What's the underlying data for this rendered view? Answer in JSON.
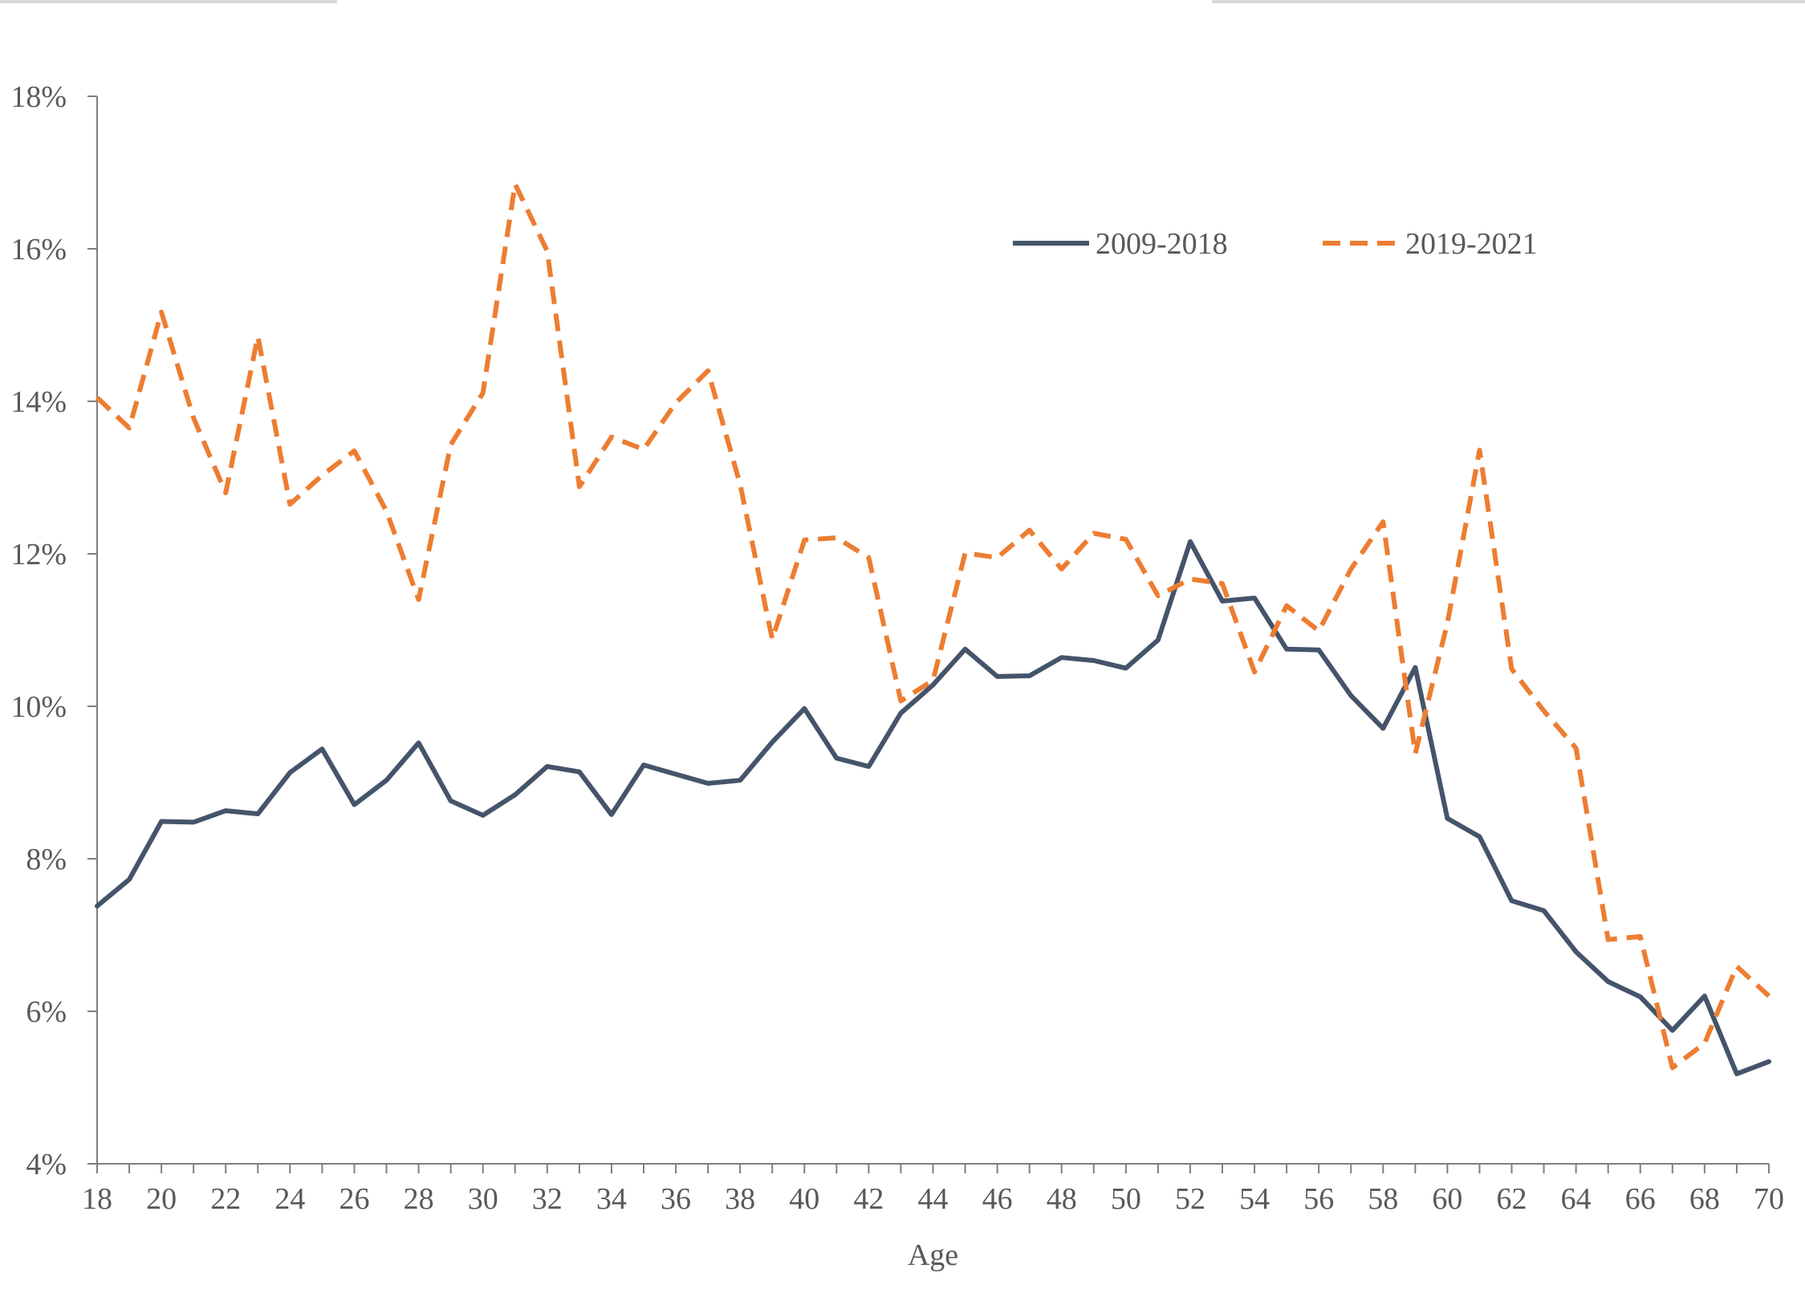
{
  "chart_data": {
    "type": "line",
    "xlabel": "Age",
    "ylabel": "",
    "xlim": [
      18,
      70
    ],
    "ylim": [
      4,
      18
    ],
    "y_unit": "%",
    "x_ticks": [
      18,
      20,
      22,
      24,
      26,
      28,
      30,
      32,
      34,
      36,
      38,
      40,
      42,
      44,
      46,
      48,
      50,
      52,
      54,
      56,
      58,
      60,
      62,
      64,
      66,
      68,
      70
    ],
    "y_ticks": [
      4,
      6,
      8,
      10,
      12,
      14,
      16,
      18
    ],
    "y_tick_labels": [
      "4%",
      "6%",
      "8%",
      "10%",
      "12%",
      "14%",
      "16%",
      "18%"
    ],
    "grid": false,
    "legend_position": "top-right",
    "x": [
      18,
      19,
      20,
      21,
      22,
      23,
      24,
      25,
      26,
      27,
      28,
      29,
      30,
      31,
      32,
      33,
      34,
      35,
      36,
      37,
      38,
      39,
      40,
      41,
      42,
      43,
      44,
      45,
      46,
      47,
      48,
      49,
      50,
      51,
      52,
      53,
      54,
      55,
      56,
      57,
      58,
      59,
      60,
      61,
      62,
      63,
      64,
      65,
      66,
      67,
      68,
      69,
      70
    ],
    "series": [
      {
        "name": "2009-2018",
        "color": "#44546a",
        "style": "solid",
        "values": [
          7.38,
          7.73,
          8.49,
          8.48,
          8.63,
          8.59,
          9.13,
          9.44,
          8.71,
          9.03,
          9.52,
          8.76,
          8.57,
          8.84,
          9.21,
          9.14,
          8.58,
          9.23,
          9.11,
          8.99,
          9.03,
          9.53,
          9.97,
          9.32,
          9.21,
          9.91,
          10.28,
          10.75,
          10.39,
          10.4,
          10.64,
          10.6,
          10.5,
          10.87,
          12.16,
          11.38,
          11.42,
          10.75,
          10.74,
          10.14,
          9.71,
          10.51,
          8.53,
          8.29,
          7.45,
          7.32,
          6.78,
          6.39,
          6.19,
          5.75,
          6.2,
          5.18,
          5.34
        ]
      },
      {
        "name": "2019-2021",
        "color": "#ed7d31",
        "style": "dashed",
        "values": [
          14.05,
          13.65,
          15.17,
          13.78,
          12.8,
          14.85,
          12.65,
          13.03,
          13.35,
          12.56,
          11.4,
          13.43,
          14.11,
          16.85,
          15.97,
          12.88,
          13.53,
          13.37,
          13.98,
          14.4,
          12.91,
          10.88,
          12.18,
          12.21,
          11.95,
          10.07,
          10.34,
          12.01,
          11.95,
          12.31,
          11.8,
          12.27,
          12.19,
          11.45,
          11.67,
          11.61,
          10.45,
          11.32,
          10.99,
          11.8,
          12.42,
          9.38,
          11.09,
          13.36,
          10.49,
          9.94,
          9.45,
          6.94,
          6.98,
          5.26,
          5.58,
          6.59,
          6.2
        ]
      }
    ]
  }
}
